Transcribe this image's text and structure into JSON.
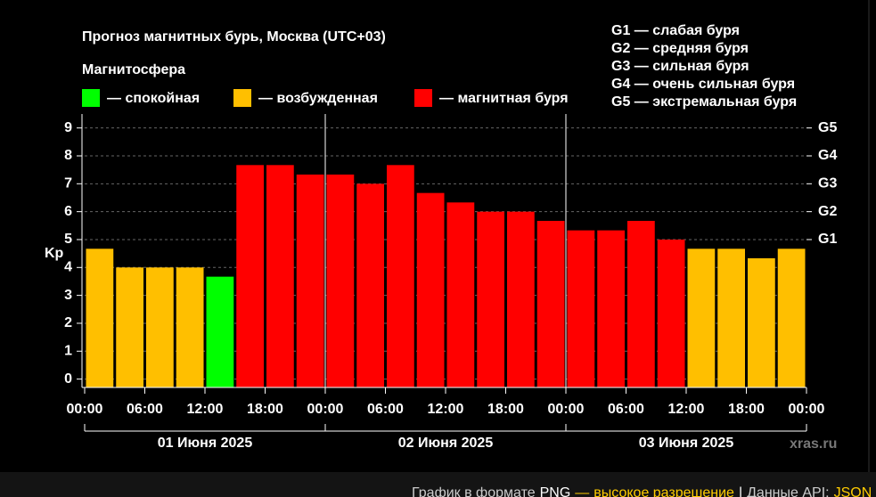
{
  "chart_data": {
    "type": "bar",
    "title": "Прогноз магнитных бурь, Москва (UTC+03)",
    "subtitle": "Магнитосфера",
    "legend": [
      {
        "color": "#00ff00",
        "label": "— спокойная"
      },
      {
        "color": "#ffbf00",
        "label": "— возбужденная"
      },
      {
        "color": "#ff0000",
        "label": "— магнитная буря"
      }
    ],
    "storm_legend": [
      "G1 — слабая буря",
      "G2 — средняя буря",
      "G3 — сильная буря",
      "G4 — очень сильная буря",
      "G5 — экстремальная буря"
    ],
    "y_label": "Kp",
    "x": [
      0,
      3,
      6,
      9,
      12,
      15,
      18,
      21,
      24,
      27,
      30,
      33,
      36,
      39,
      42,
      45,
      48,
      51,
      54,
      57,
      60,
      63,
      66,
      69
    ],
    "bar_width": 3,
    "values": [
      4.67,
      4,
      4,
      4,
      3.67,
      7.67,
      7.67,
      7.33,
      7.33,
      7,
      7.67,
      6.67,
      6.33,
      6,
      6,
      5.67,
      5.33,
      5.33,
      5.67,
      5,
      4.67,
      4.67,
      4.33,
      4.67
    ],
    "colors": [
      "#ffbf00",
      "#ffbf00",
      "#ffbf00",
      "#ffbf00",
      "#00ff00",
      "#ff0000",
      "#ff0000",
      "#ff0000",
      "#ff0000",
      "#ff0000",
      "#ff0000",
      "#ff0000",
      "#ff0000",
      "#ff0000",
      "#ff0000",
      "#ff0000",
      "#ff0000",
      "#ff0000",
      "#ff0000",
      "#ff0000",
      "#ffbf00",
      "#ffbf00",
      "#ffbf00",
      "#ffbf00"
    ],
    "xlim": [
      0,
      72
    ],
    "xticks": [
      {
        "value": 0,
        "label": "00:00"
      },
      {
        "value": 6,
        "label": "06:00"
      },
      {
        "value": 12,
        "label": "12:00"
      },
      {
        "value": 18,
        "label": "18:00"
      },
      {
        "value": 24,
        "label": "00:00"
      },
      {
        "value": 30,
        "label": "06:00"
      },
      {
        "value": 36,
        "label": "12:00"
      },
      {
        "value": 42,
        "label": "18:00"
      },
      {
        "value": 48,
        "label": "00:00"
      },
      {
        "value": 54,
        "label": "06:00"
      },
      {
        "value": 60,
        "label": "12:00"
      },
      {
        "value": 66,
        "label": "18:00"
      },
      {
        "value": 72,
        "label": "00:00"
      }
    ],
    "days": [
      {
        "start": 0,
        "end": 24,
        "label": "01 Июня 2025"
      },
      {
        "start": 24,
        "end": 48,
        "label": "02 Июня 2025"
      },
      {
        "start": 48,
        "end": 72,
        "label": "03 Июня 2025"
      }
    ],
    "ylim": [
      -0.3,
      9.5
    ],
    "yticks": [
      0,
      1,
      2,
      3,
      4,
      5,
      6,
      7,
      8,
      9
    ],
    "y2ticks": [
      {
        "value": 5,
        "label": "G1"
      },
      {
        "value": 6,
        "label": "G2"
      },
      {
        "value": 7,
        "label": "G3"
      },
      {
        "value": 8,
        "label": "G4"
      },
      {
        "value": 9,
        "label": "G5"
      }
    ],
    "grid": true,
    "watermark": "xras.ru"
  },
  "footer": [
    "График в формате",
    "PNG",
    "—",
    "высокое разрешение",
    "|",
    "Данные API:",
    "JSON"
  ]
}
